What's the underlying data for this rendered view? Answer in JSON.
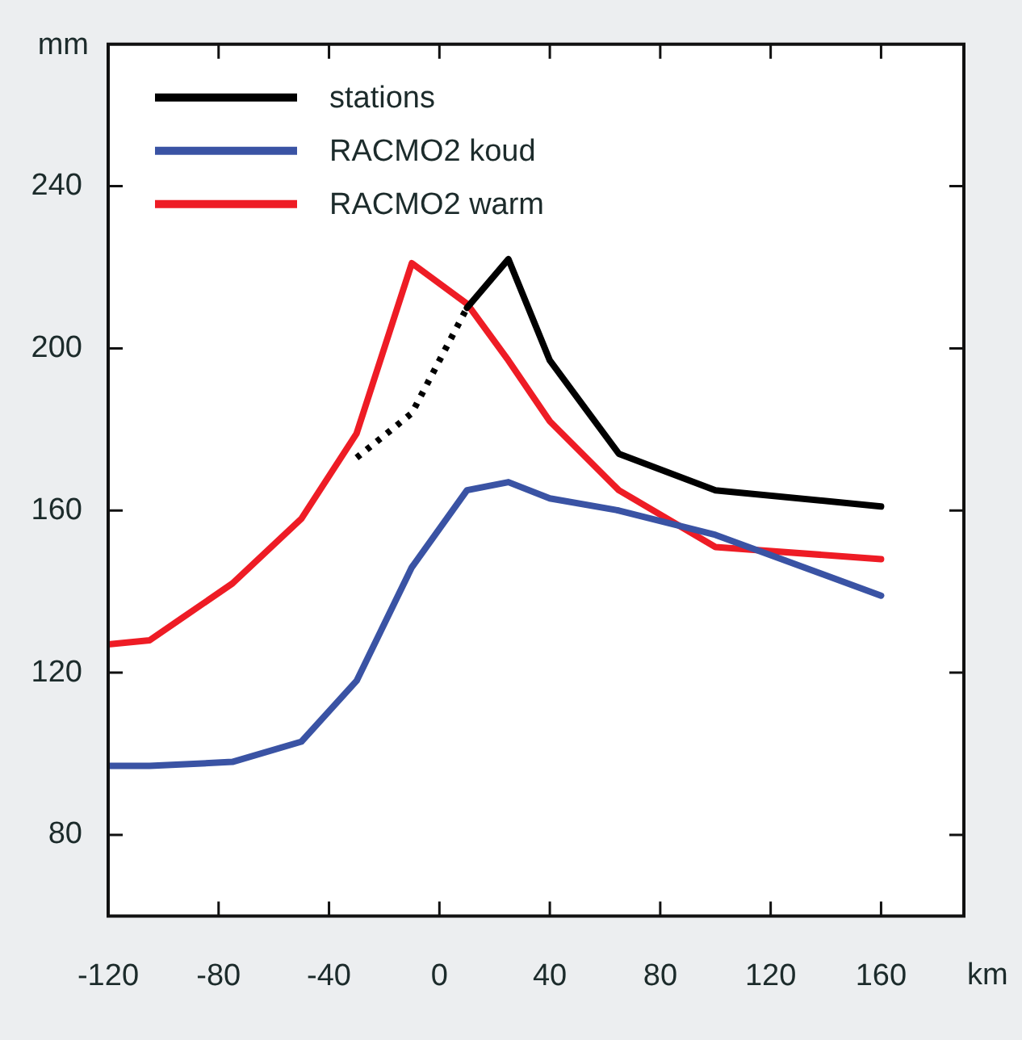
{
  "chart_data": {
    "type": "line",
    "xlabel": "km",
    "ylabel": "mm",
    "x": [
      -120,
      -105,
      -75,
      -50,
      -30,
      -10,
      10,
      25,
      40,
      65,
      100,
      160
    ],
    "series": [
      {
        "name": "stations",
        "color": "#000000",
        "values": [
          null,
          null,
          null,
          null,
          null,
          null,
          210,
          222,
          197,
          174,
          165,
          161
        ]
      },
      {
        "name": "RACMO2 koud",
        "color": "#3a53a4",
        "values": [
          97,
          97,
          98,
          103,
          118,
          146,
          165,
          167,
          163,
          160,
          154,
          139
        ]
      },
      {
        "name": "RACMO2 warm",
        "color": "#ee1c25",
        "values": [
          127,
          128,
          142,
          158,
          179,
          221,
          211,
          197,
          182,
          165,
          151,
          148
        ]
      },
      {
        "color": "#000000",
        "line_style": "dotted",
        "values": [
          null,
          null,
          null,
          null,
          173,
          184,
          210,
          null,
          null,
          null,
          null,
          null
        ]
      }
    ],
    "xlim": [
      -120,
      190
    ],
    "ylim": [
      60,
      275
    ],
    "xticks": [
      -120,
      -80,
      -40,
      0,
      40,
      80,
      120,
      160
    ],
    "yticks": [
      80,
      120,
      160,
      200,
      240
    ],
    "grid": false,
    "legend": "top left",
    "marker": "none",
    "line_style": "solid"
  }
}
